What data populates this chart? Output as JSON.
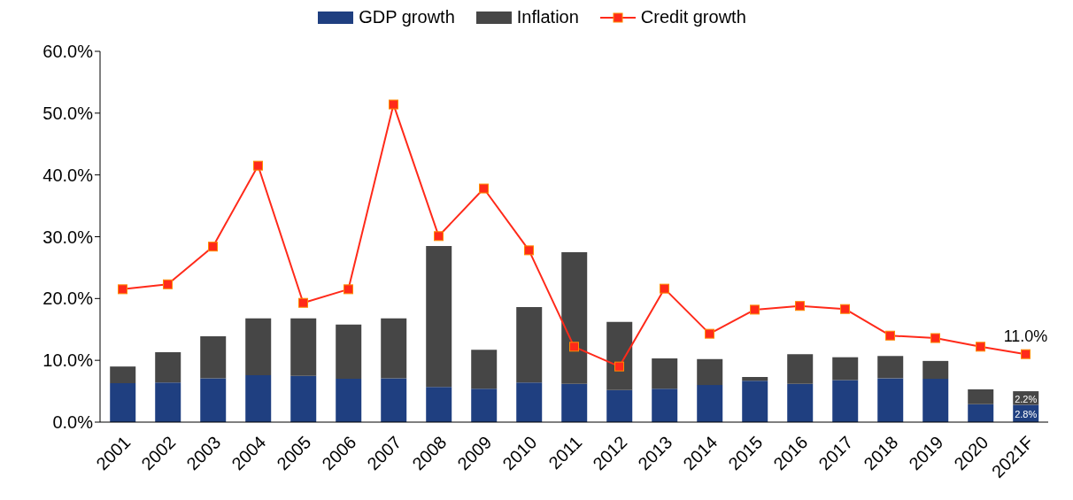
{
  "chart_data": {
    "type": "bar",
    "stacked": true,
    "categories": [
      "2001",
      "2002",
      "2003",
      "2004",
      "2005",
      "2006",
      "2007",
      "2008",
      "2009",
      "2010",
      "2011",
      "2012",
      "2013",
      "2014",
      "2015",
      "2016",
      "2017",
      "2018",
      "2019",
      "2020",
      "2021F"
    ],
    "series": [
      {
        "name": "GDP growth",
        "color": "#1f3f80",
        "values": [
          6.3,
          6.4,
          7.1,
          7.6,
          7.5,
          7.0,
          7.1,
          5.7,
          5.4,
          6.4,
          6.2,
          5.2,
          5.4,
          6.0,
          6.7,
          6.2,
          6.8,
          7.1,
          7.0,
          2.9,
          2.8
        ],
        "value_labels": [
          null,
          null,
          null,
          null,
          null,
          null,
          null,
          null,
          null,
          null,
          null,
          null,
          null,
          null,
          null,
          null,
          null,
          null,
          null,
          null,
          "2.8%"
        ]
      },
      {
        "name": "Inflation",
        "color": "#464646",
        "values": [
          2.7,
          4.9,
          6.8,
          9.2,
          9.3,
          8.8,
          9.7,
          22.8,
          6.3,
          12.2,
          21.3,
          11.0,
          4.9,
          4.2,
          0.6,
          4.8,
          3.7,
          3.6,
          2.9,
          2.4,
          2.2
        ],
        "value_labels": [
          null,
          null,
          null,
          null,
          null,
          null,
          null,
          null,
          null,
          null,
          null,
          null,
          null,
          null,
          null,
          null,
          null,
          null,
          null,
          null,
          "2.2%"
        ]
      },
      {
        "name": "Credit growth",
        "type": "line",
        "color": "#ff2a1a",
        "values": [
          21.5,
          22.3,
          28.4,
          41.5,
          19.3,
          21.5,
          51.4,
          30.1,
          37.8,
          27.8,
          12.2,
          9.0,
          21.6,
          14.3,
          18.2,
          18.8,
          18.3,
          14.0,
          13.6,
          12.2,
          11.0
        ],
        "value_labels": [
          null,
          null,
          null,
          null,
          null,
          null,
          null,
          null,
          null,
          null,
          null,
          null,
          null,
          null,
          null,
          null,
          null,
          null,
          null,
          null,
          "11.0%"
        ]
      }
    ],
    "ylim": [
      0,
      60
    ],
    "yticks": [
      {
        "value": 0,
        "label": "0.0%"
      },
      {
        "value": 10,
        "label": "10.0%"
      },
      {
        "value": 20,
        "label": "20.0%"
      },
      {
        "value": 30,
        "label": "30.0%"
      },
      {
        "value": 40,
        "label": "40.0%"
      },
      {
        "value": 50,
        "label": "50.0%"
      },
      {
        "value": 60,
        "label": "60.0%"
      }
    ],
    "legend": "top",
    "marker": "square",
    "line_style": "solid",
    "grid": false
  }
}
